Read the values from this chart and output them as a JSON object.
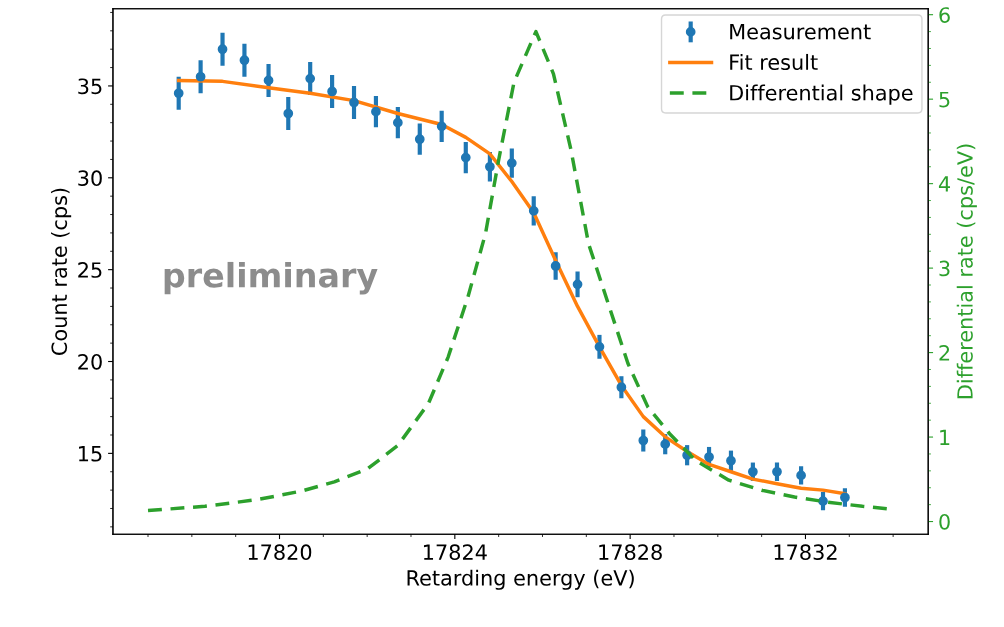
{
  "chart_data": {
    "type": "scatter",
    "xlabel": "Retarding energy (eV)",
    "ylabel": "Count rate (cps)",
    "y2label": "Differential rate (cps/eV)",
    "xlim": [
      17816.2,
      17834.8
    ],
    "xticks": [
      17820,
      17824,
      17828,
      17832
    ],
    "ylim": [
      10.6,
      39.2
    ],
    "yticks": [
      15,
      20,
      25,
      30,
      35
    ],
    "y2lim": [
      -0.15,
      6.07
    ],
    "y2ticks": [
      0,
      1,
      2,
      3,
      4,
      5,
      6
    ],
    "legend": "top right",
    "grid": false,
    "annotations": [
      "preliminary"
    ],
    "series": [
      {
        "name": "Measurement",
        "color": "#1f77b4",
        "marker": "circle",
        "x": [
          17817.7,
          17818.2,
          17818.7,
          17819.2,
          17819.75,
          17820.2,
          17820.7,
          17821.2,
          17821.7,
          17822.2,
          17822.7,
          17823.2,
          17823.7,
          17824.25,
          17824.8,
          17825.3,
          17825.8,
          17826.3,
          17826.8,
          17827.3,
          17827.8,
          17828.3,
          17828.8,
          17829.3,
          17829.8,
          17830.3,
          17830.8,
          17831.35,
          17831.9,
          17832.4,
          17832.9
        ],
        "values": [
          34.6,
          35.5,
          37.0,
          36.4,
          35.3,
          33.5,
          35.4,
          34.7,
          34.1,
          33.6,
          33.0,
          32.1,
          32.8,
          31.1,
          30.6,
          30.8,
          28.2,
          25.2,
          24.2,
          20.8,
          18.6,
          15.7,
          15.5,
          14.9,
          14.8,
          14.6,
          14.0,
          14.0,
          13.8,
          12.4,
          12.6
        ],
        "errors": [
          0.9,
          0.9,
          0.9,
          0.9,
          0.9,
          0.9,
          0.9,
          0.9,
          0.9,
          0.85,
          0.85,
          0.85,
          0.85,
          0.85,
          0.8,
          0.8,
          0.8,
          0.75,
          0.7,
          0.65,
          0.6,
          0.6,
          0.55,
          0.55,
          0.55,
          0.55,
          0.5,
          0.5,
          0.5,
          0.5,
          0.5
        ]
      },
      {
        "name": "Fit result",
        "type": "line",
        "color": "#ff7f0e",
        "line_style": "solid",
        "x": [
          17817.7,
          17818.7,
          17819.75,
          17820.7,
          17821.7,
          17822.7,
          17823.7,
          17824.25,
          17824.8,
          17825.3,
          17825.8,
          17826.3,
          17826.8,
          17827.3,
          17827.8,
          17828.3,
          17828.8,
          17829.3,
          17829.8,
          17830.3,
          17830.8,
          17831.35,
          17831.9,
          17832.4,
          17832.9
        ],
        "values": [
          35.3,
          35.25,
          34.9,
          34.6,
          34.2,
          33.5,
          32.9,
          32.2,
          31.3,
          29.8,
          28.1,
          25.5,
          23.0,
          20.8,
          18.7,
          17.0,
          15.9,
          15.1,
          14.4,
          14.0,
          13.6,
          13.35,
          13.1,
          13.0,
          12.8
        ]
      },
      {
        "name": "Differential shape",
        "type": "line",
        "axis": "y2",
        "color": "#2ca02c",
        "line_style": "dashed",
        "x": [
          17817.0,
          17818.3,
          17819.5,
          17820.5,
          17821.25,
          17822.0,
          17822.7,
          17823.4,
          17823.85,
          17824.3,
          17824.7,
          17825.0,
          17825.35,
          17825.85,
          17826.25,
          17826.65,
          17827.05,
          17827.5,
          17827.95,
          17828.4,
          17828.9,
          17829.5,
          17830.25,
          17831.0,
          17831.75,
          17832.5,
          17833.3,
          17833.9
        ],
        "values": [
          0.13,
          0.18,
          0.26,
          0.36,
          0.47,
          0.62,
          0.9,
          1.4,
          1.95,
          2.66,
          3.41,
          4.28,
          5.2,
          5.8,
          5.3,
          4.4,
          3.29,
          2.58,
          1.87,
          1.36,
          1.04,
          0.72,
          0.49,
          0.37,
          0.29,
          0.23,
          0.18,
          0.15
        ]
      }
    ]
  }
}
